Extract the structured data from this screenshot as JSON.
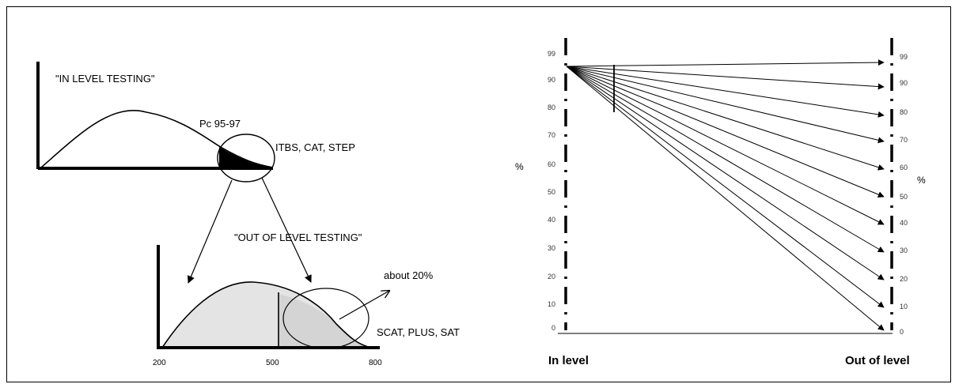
{
  "left_diagram": {
    "in_level_title": "\"IN LEVEL TESTING\"",
    "pc_label": "Pc 95-97",
    "in_level_tests": "ITBS, CAT, STEP",
    "out_level_title": "\"OUT OF LEVEL TESTING\"",
    "about_label": "about 20%",
    "out_level_tests": "SCAT, PLUS, SAT",
    "x_ticks": [
      "200",
      "500",
      "800"
    ]
  },
  "right_diagram": {
    "percent_left": "%",
    "percent_right": "%",
    "ticks": [
      "99",
      "90",
      "80",
      "70",
      "60",
      "50",
      "40",
      "30",
      "20",
      "10",
      "0"
    ],
    "x_left_label": "In level",
    "x_right_label": "Out of level"
  },
  "colors": {
    "ink": "#000000",
    "shade": "#e4e4e4"
  }
}
